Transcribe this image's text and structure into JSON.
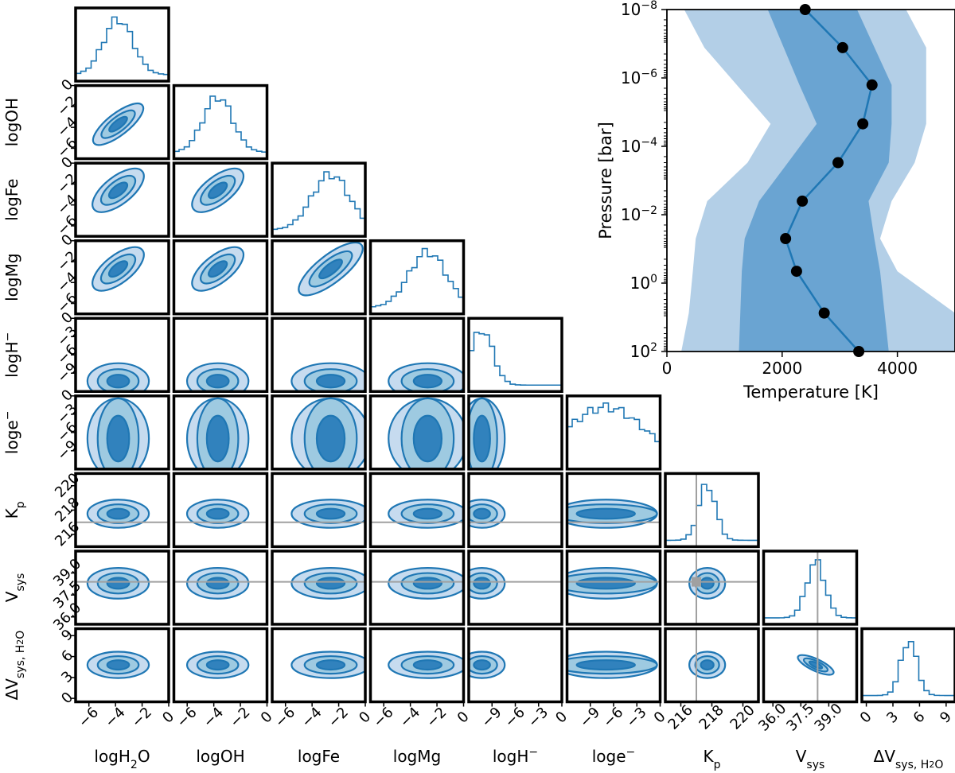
{
  "colors": {
    "primary": "#1f77b4",
    "level_outer": "#c6dbef",
    "level_mid": "#9ecae1",
    "level_inner": "#3182bd",
    "truth_line": "#a0a0a0",
    "band_2sigma": "#b3cfe7",
    "band_1sigma": "#6aa4d2",
    "marker": "#000000"
  },
  "chart_data": [
    {
      "type": "corner",
      "parameters": [
        {
          "key": "logH2O",
          "label": "logH",
          "label_sub": "2",
          "label_suffix": "O",
          "range": [
            -7,
            0
          ],
          "ticks": [
            -6,
            -4,
            -2,
            0
          ],
          "tick_labels": [
            "−6",
            "−4",
            "−2",
            "0"
          ],
          "peak": -3.8,
          "sigma": 1.1
        },
        {
          "key": "logOH",
          "label": "logOH",
          "range": [
            -7,
            0
          ],
          "ticks": [
            -6,
            -4,
            -2,
            0
          ],
          "tick_labels": [
            "−6",
            "−4",
            "−2",
            "0"
          ],
          "peak": -3.7,
          "sigma": 1.1
        },
        {
          "key": "logFe",
          "label": "logFe",
          "range": [
            -7,
            0
          ],
          "ticks": [
            -6,
            -4,
            -2,
            0
          ],
          "tick_labels": [
            "−6",
            "−4",
            "−2",
            "0"
          ],
          "peak": -2.6,
          "sigma": 1.4
        },
        {
          "key": "logMg",
          "label": "logMg",
          "range": [
            -7,
            0
          ],
          "ticks": [
            -6,
            -4,
            -2,
            0
          ],
          "tick_labels": [
            "−6",
            "−4",
            "−2",
            "0"
          ],
          "peak": -2.7,
          "sigma": 1.4
        },
        {
          "key": "logH-",
          "label": "logH",
          "label_sup": "−",
          "range": [
            -12,
            0
          ],
          "ticks": [
            -9,
            -6,
            -3,
            0
          ],
          "tick_labels": [
            "−9",
            "−6",
            "−3",
            "0"
          ],
          "peak": -10.3,
          "sigma": 1.4
        },
        {
          "key": "loge-",
          "label": "loge",
          "label_sup": "−",
          "range": [
            -12,
            0
          ],
          "ticks": [
            -9,
            -6,
            -3,
            0
          ],
          "tick_labels": [
            "−9",
            "−6",
            "−3",
            "0"
          ],
          "peak": -7,
          "sigma": 5
        },
        {
          "key": "Kp",
          "label": "K",
          "label_sub": "p",
          "range": [
            215,
            221
          ],
          "ticks": [
            216,
            218,
            220
          ],
          "tick_labels": [
            "216",
            "218",
            "220"
          ],
          "peak": 217.7,
          "sigma": 0.55,
          "truth": 217
        },
        {
          "key": "Vsys",
          "label": "V",
          "label_sub": "sys",
          "range": [
            35.5,
            40.5
          ],
          "ticks": [
            36.0,
            37.5,
            39.0
          ],
          "tick_labels": [
            "36.0",
            "37.5",
            "39.0"
          ],
          "peak": 38.3,
          "sigma": 0.5,
          "truth": 38.4
        },
        {
          "key": "dVsysH2O",
          "label": "ΔV",
          "label_sub": "sys, H",
          "label_sub2": "2",
          "label_sub3": "O",
          "range": [
            -0.5,
            10
          ],
          "ticks": [
            0,
            3,
            6,
            9
          ],
          "tick_labels": [
            "0",
            "3",
            "6",
            "9"
          ],
          "peak": 4.8,
          "sigma": 0.9
        }
      ]
    },
    {
      "type": "line",
      "xlabel": "Temperature [K]",
      "ylabel": "Pressure [bar]",
      "xlim": [
        0,
        5000
      ],
      "ylim": [
        100,
        1e-08
      ],
      "yscale": "log",
      "xticks": [
        0,
        2000,
        4000
      ],
      "xtick_labels": [
        "0",
        "2000",
        "4000"
      ],
      "yticks": [
        {
          "value": 1e-08,
          "base": "10",
          "exp": "−8"
        },
        {
          "value": 1e-06,
          "base": "10",
          "exp": "−6"
        },
        {
          "value": 0.0001,
          "base": "10",
          "exp": "−4"
        },
        {
          "value": 0.01,
          "base": "10",
          "exp": "−2"
        },
        {
          "value": 1,
          "base": "10",
          "exp": "0"
        },
        {
          "value": 100,
          "base": "10",
          "exp": "2"
        }
      ],
      "profile": {
        "pressure": [
          1e-08,
          1.3e-07,
          1.6e-06,
          2.2e-05,
          0.0003,
          0.004,
          0.05,
          0.45,
          7.5,
          100
        ],
        "temperature": [
          2400,
          3050,
          3560,
          3400,
          2970,
          2350,
          2060,
          2250,
          2730,
          3330
        ]
      },
      "band_1sigma": {
        "pressure": [
          1e-08,
          1.6e-06,
          2.2e-05,
          0.0003,
          0.004,
          0.05,
          0.45,
          100
        ],
        "low": [
          1750,
          2300,
          2600,
          2100,
          1600,
          1350,
          1300,
          1250
        ],
        "high": [
          3300,
          3900,
          3900,
          3850,
          3500,
          3600,
          3700,
          3850
        ]
      },
      "band_2sigma": {
        "pressure": [
          1e-08,
          1.3e-07,
          2.2e-05,
          0.0003,
          0.004,
          0.05,
          0.45,
          7.5,
          100
        ],
        "low": [
          300,
          650,
          1800,
          1400,
          700,
          500,
          450,
          380,
          250
        ],
        "high": [
          4150,
          4500,
          4500,
          4300,
          3900,
          3700,
          4000,
          5000,
          5000
        ]
      }
    }
  ]
}
